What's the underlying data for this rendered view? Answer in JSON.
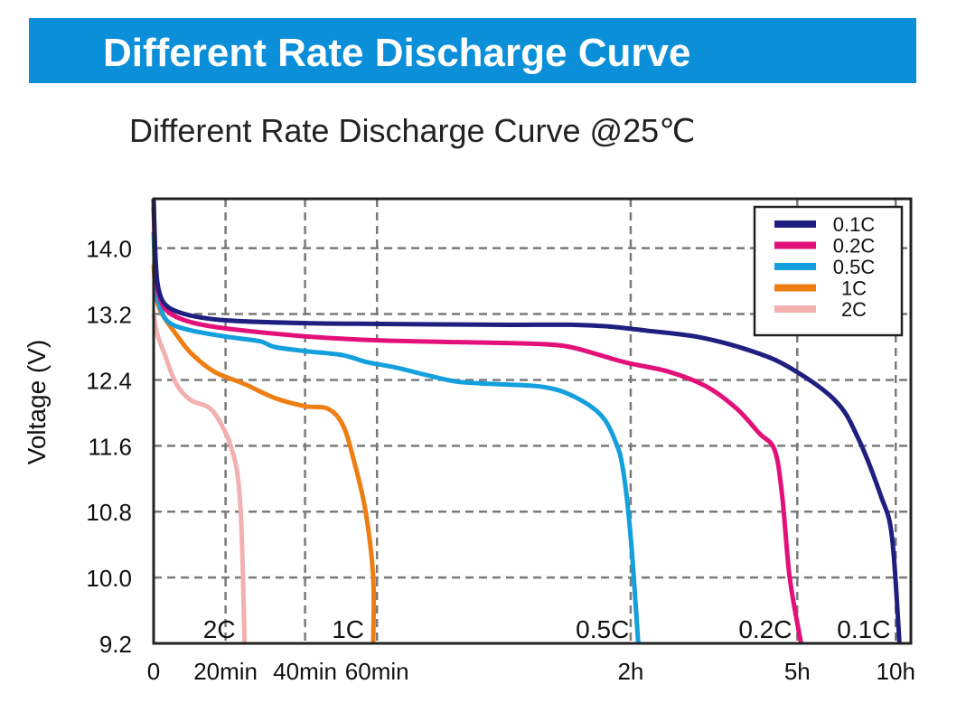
{
  "banner": {
    "title": "Different Rate Discharge Curve"
  },
  "colors": {
    "banner": "#0a8fd8",
    "c01": "#1f1f80",
    "c02": "#e3107a",
    "c05": "#149fdd",
    "c1": "#ee7d12",
    "c2": "#f2b0b0",
    "grid": "#7a7a7a"
  },
  "chart_data": {
    "type": "line",
    "title": "Different Rate Discharge Curve @25℃",
    "xlabel": "",
    "ylabel": "Voltage (V)",
    "ylim": [
      9.2,
      14.6
    ],
    "yticks": [
      9.2,
      10.0,
      10.8,
      11.6,
      12.4,
      13.2,
      14.0
    ],
    "ytick_labels": [
      "9.2",
      "10.0",
      "10.8",
      "11.6",
      "12.4",
      "13.2",
      "14.0"
    ],
    "xticks": [
      {
        "label": "0",
        "pos": 0
      },
      {
        "label": "20min",
        "pos": 0.095
      },
      {
        "label": "40min",
        "pos": 0.2
      },
      {
        "label": "60min",
        "pos": 0.295
      },
      {
        "label": "2h",
        "pos": 0.63
      },
      {
        "label": "5h",
        "pos": 0.85
      },
      {
        "label": "10h",
        "pos": 0.98
      }
    ],
    "x_grid": [
      0.095,
      0.2,
      0.295,
      0.63,
      0.85,
      0.98
    ],
    "grid": true,
    "legend_position": "top-right",
    "series": [
      {
        "name": "0.1C",
        "color_key": "c01",
        "end_label": "0.1C",
        "points": [
          [
            0,
            14.6
          ],
          [
            0.003,
            13.8
          ],
          [
            0.008,
            13.45
          ],
          [
            0.02,
            13.28
          ],
          [
            0.05,
            13.18
          ],
          [
            0.1,
            13.12
          ],
          [
            0.2,
            13.09
          ],
          [
            0.3,
            13.08
          ],
          [
            0.45,
            13.07
          ],
          [
            0.55,
            13.07
          ],
          [
            0.6,
            13.05
          ],
          [
            0.65,
            13.0
          ],
          [
            0.72,
            12.92
          ],
          [
            0.79,
            12.75
          ],
          [
            0.84,
            12.55
          ],
          [
            0.9,
            12.15
          ],
          [
            0.93,
            11.7
          ],
          [
            0.96,
            11.0
          ],
          [
            0.975,
            10.5
          ],
          [
            0.985,
            9.2
          ]
        ]
      },
      {
        "name": "0.2C",
        "color_key": "c02",
        "end_label": "0.2C",
        "points": [
          [
            0,
            14.5
          ],
          [
            0.003,
            13.7
          ],
          [
            0.008,
            13.4
          ],
          [
            0.02,
            13.22
          ],
          [
            0.05,
            13.1
          ],
          [
            0.1,
            13.02
          ],
          [
            0.2,
            12.93
          ],
          [
            0.3,
            12.88
          ],
          [
            0.45,
            12.85
          ],
          [
            0.5,
            12.84
          ],
          [
            0.55,
            12.8
          ],
          [
            0.62,
            12.62
          ],
          [
            0.68,
            12.5
          ],
          [
            0.73,
            12.32
          ],
          [
            0.77,
            12.05
          ],
          [
            0.8,
            11.75
          ],
          [
            0.82,
            11.55
          ],
          [
            0.83,
            11.0
          ],
          [
            0.84,
            10.0
          ],
          [
            0.855,
            9.2
          ]
        ]
      },
      {
        "name": "0.5C",
        "color_key": "c05",
        "end_label": "0.5C",
        "points": [
          [
            0,
            14.2
          ],
          [
            0.003,
            13.55
          ],
          [
            0.008,
            13.3
          ],
          [
            0.02,
            13.1
          ],
          [
            0.05,
            13.0
          ],
          [
            0.1,
            12.92
          ],
          [
            0.14,
            12.87
          ],
          [
            0.16,
            12.8
          ],
          [
            0.2,
            12.75
          ],
          [
            0.25,
            12.7
          ],
          [
            0.28,
            12.62
          ],
          [
            0.32,
            12.55
          ],
          [
            0.36,
            12.46
          ],
          [
            0.4,
            12.38
          ],
          [
            0.45,
            12.35
          ],
          [
            0.51,
            12.32
          ],
          [
            0.55,
            12.22
          ],
          [
            0.59,
            11.98
          ],
          [
            0.61,
            11.65
          ],
          [
            0.62,
            11.3
          ],
          [
            0.63,
            10.5
          ],
          [
            0.64,
            9.2
          ]
        ]
      },
      {
        "name": "1C",
        "color_key": "c1",
        "end_label": "1C",
        "points": [
          [
            0,
            13.8
          ],
          [
            0.003,
            13.45
          ],
          [
            0.01,
            13.22
          ],
          [
            0.03,
            12.95
          ],
          [
            0.05,
            12.72
          ],
          [
            0.08,
            12.5
          ],
          [
            0.12,
            12.35
          ],
          [
            0.16,
            12.18
          ],
          [
            0.2,
            12.08
          ],
          [
            0.23,
            12.05
          ],
          [
            0.25,
            11.85
          ],
          [
            0.265,
            11.4
          ],
          [
            0.28,
            10.8
          ],
          [
            0.29,
            10.0
          ],
          [
            0.29,
            9.2
          ]
        ]
      },
      {
        "name": "2C",
        "color_key": "c2",
        "end_label": "2C",
        "points": [
          [
            0,
            13.2
          ],
          [
            0.005,
            12.95
          ],
          [
            0.015,
            12.7
          ],
          [
            0.025,
            12.45
          ],
          [
            0.035,
            12.28
          ],
          [
            0.05,
            12.15
          ],
          [
            0.07,
            12.08
          ],
          [
            0.08,
            12.0
          ],
          [
            0.09,
            11.85
          ],
          [
            0.1,
            11.65
          ],
          [
            0.11,
            11.3
          ],
          [
            0.115,
            10.8
          ],
          [
            0.118,
            10.0
          ],
          [
            0.12,
            9.2
          ]
        ]
      }
    ]
  }
}
